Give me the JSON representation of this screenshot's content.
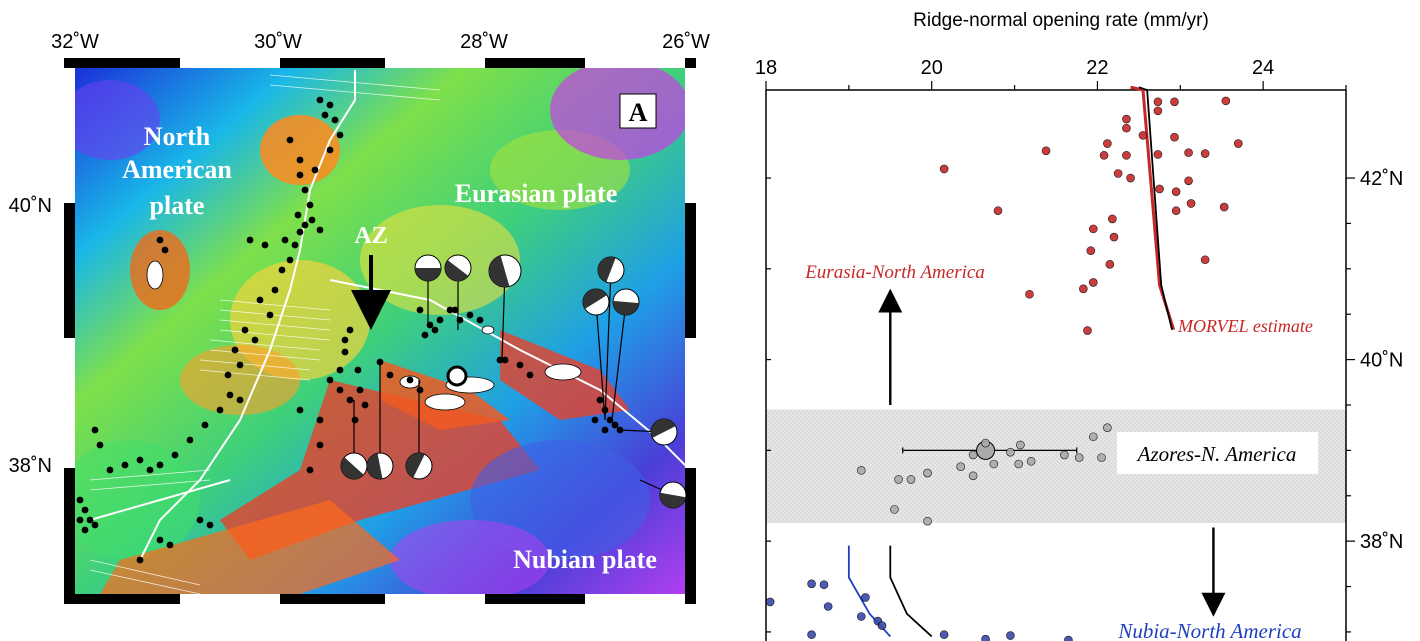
{
  "map": {
    "panel_label": "A",
    "lon_ticks": [
      "32˚W",
      "30˚W",
      "28˚W",
      "26˚W"
    ],
    "lat_ticks": [
      "40˚N",
      "38˚N"
    ],
    "plate_labels": {
      "north_american": [
        "North",
        "American",
        "plate"
      ],
      "eurasian": "Eurasian plate",
      "nubian": "Nubian plate"
    },
    "az_label": "AZ",
    "colors": {
      "seismicity": "#000000",
      "ridge_trace": "#ffffff",
      "island": "#ffffff"
    }
  },
  "chart_data": {
    "type": "scatter",
    "title": "Ridge-normal opening rate (mm/yr)",
    "x_axis": {
      "label": "Ridge-normal opening rate (mm/yr)",
      "ticks": [
        18,
        20,
        22,
        24
      ],
      "range": [
        18,
        25
      ],
      "position": "top"
    },
    "y_axis": {
      "ticks": [
        "42˚N",
        "40˚N",
        "38˚N"
      ],
      "tick_values": [
        42,
        40,
        38
      ],
      "range": [
        36.9,
        42.97
      ],
      "position": "right",
      "unit": "degrees N latitude"
    },
    "series": [
      {
        "name": "Eurasia-North America",
        "color": "#c62828",
        "points": [
          [
            22.73,
            42.84
          ],
          [
            22.93,
            42.84
          ],
          [
            22.73,
            42.74
          ],
          [
            22.35,
            42.55
          ],
          [
            22.55,
            42.47
          ],
          [
            22.93,
            42.45
          ],
          [
            22.12,
            42.38
          ],
          [
            23.7,
            42.38
          ],
          [
            21.38,
            42.3
          ],
          [
            22.08,
            42.25
          ],
          [
            22.35,
            42.25
          ],
          [
            22.73,
            42.26
          ],
          [
            23.1,
            42.28
          ],
          [
            23.3,
            42.27
          ],
          [
            20.15,
            42.1
          ],
          [
            22.25,
            42.05
          ],
          [
            22.4,
            42.0
          ],
          [
            23.1,
            41.97
          ],
          [
            22.75,
            41.88
          ],
          [
            22.95,
            41.85
          ],
          [
            23.13,
            41.72
          ],
          [
            20.8,
            41.64
          ],
          [
            22.95,
            41.64
          ],
          [
            23.53,
            41.68
          ],
          [
            22.18,
            41.55
          ],
          [
            21.95,
            41.44
          ],
          [
            22.2,
            41.35
          ],
          [
            21.92,
            41.2
          ],
          [
            22.15,
            41.05
          ],
          [
            23.3,
            41.1
          ],
          [
            21.95,
            40.85
          ],
          [
            21.83,
            40.78
          ],
          [
            21.18,
            40.72
          ],
          [
            21.88,
            40.32
          ],
          [
            22.35,
            42.65
          ],
          [
            23.55,
            42.85
          ]
        ]
      },
      {
        "name": "Azores-N. America",
        "color": "#aaaaaa",
        "points": [
          [
            19.15,
            38.78
          ],
          [
            19.6,
            38.68
          ],
          [
            19.75,
            38.68
          ],
          [
            19.95,
            38.75
          ],
          [
            19.55,
            38.35
          ],
          [
            19.95,
            38.22
          ],
          [
            20.35,
            38.82
          ],
          [
            20.5,
            38.95
          ],
          [
            20.5,
            38.72
          ],
          [
            20.95,
            38.98
          ],
          [
            21.07,
            39.06
          ],
          [
            20.75,
            38.85
          ],
          [
            21.05,
            38.85
          ],
          [
            21.2,
            38.88
          ],
          [
            21.6,
            38.95
          ],
          [
            21.78,
            38.92
          ],
          [
            21.95,
            39.15
          ],
          [
            22.05,
            38.92
          ],
          [
            22.12,
            39.25
          ],
          [
            20.65,
            39.08
          ]
        ]
      },
      {
        "name": "Nubia-North America",
        "color": "#3949ab",
        "points": [
          [
            18.05,
            37.33
          ],
          [
            18.55,
            37.53
          ],
          [
            18.7,
            37.52
          ],
          [
            19.2,
            37.38
          ],
          [
            18.75,
            37.28
          ],
          [
            19.15,
            37.17
          ],
          [
            19.35,
            37.12
          ],
          [
            19.4,
            37.07
          ],
          [
            18.55,
            36.97
          ],
          [
            20.15,
            36.97
          ],
          [
            21.65,
            36.91
          ],
          [
            20.65,
            36.92
          ],
          [
            20.95,
            36.96
          ]
        ]
      }
    ],
    "model_lines": [
      {
        "name": "MORVEL estimate",
        "color": "#c62828",
        "points": [
          [
            22.4,
            43.0
          ],
          [
            22.55,
            42.97
          ],
          [
            22.75,
            40.82
          ],
          [
            22.92,
            40.33
          ]
        ]
      },
      {
        "name": "",
        "color": "#000000",
        "points": [
          [
            22.5,
            43.0
          ],
          [
            22.6,
            42.97
          ],
          [
            22.77,
            40.82
          ],
          [
            22.9,
            40.33
          ]
        ]
      },
      {
        "name": "",
        "color": "#1e3fbf",
        "points": [
          [
            19.0,
            37.95
          ],
          [
            19.0,
            37.6
          ],
          [
            19.25,
            37.2
          ],
          [
            19.5,
            36.95
          ]
        ]
      },
      {
        "name": "",
        "color": "#000000",
        "points": [
          [
            19.5,
            37.95
          ],
          [
            19.5,
            37.6
          ],
          [
            19.7,
            37.2
          ],
          [
            20.0,
            36.95
          ]
        ]
      }
    ],
    "azores_mean": {
      "x": 20.65,
      "y": 39.0,
      "x_err": [
        19.65,
        21.75
      ]
    },
    "shaded_band": {
      "lat_range": [
        38.2,
        39.45
      ],
      "label": "Azores-N. America"
    },
    "annotations": [
      {
        "text": "Eurasia-North America",
        "color": "#c62828"
      },
      {
        "text": "MORVEL estimate",
        "color": "#c62828"
      },
      {
        "text": "Nubia-North America",
        "color": "#1e3fbf"
      }
    ],
    "arrows": [
      {
        "direction": "up",
        "x": 19.5,
        "y_from": 39.5,
        "y_to": 40.65
      },
      {
        "direction": "down",
        "x": 23.4,
        "y_from": 38.15,
        "y_to": 37.3
      }
    ],
    "grid": false
  }
}
